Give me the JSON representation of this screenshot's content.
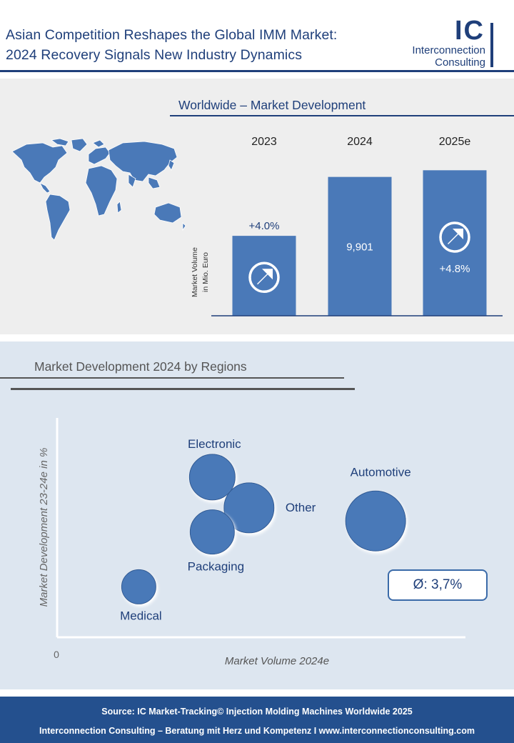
{
  "header": {
    "title_line1": "Asian Competition Reshapes the Global IMM Market:",
    "title_line2": "2024 Recovery Signals New Industry Dynamics",
    "logo_ic": "IC",
    "logo_line1": "Interconnection",
    "logo_line2": "Consulting"
  },
  "colors": {
    "navy": "#1f3f7a",
    "bar": "#4a79b8",
    "bubble": "#4a79b8",
    "panel_gray": "#eeeeee",
    "panel_blue": "#dde6f0",
    "footer": "#24508e"
  },
  "worldwide": {
    "section_title": "Worldwide – Market Development",
    "map_icon": "world-map-icon",
    "arrow_icon": "up-right-arrow-icon"
  },
  "chart_data": [
    {
      "type": "bar",
      "title": "Worldwide – Market Development",
      "ylabel": "Market Volume in Mio. Euro",
      "categories": [
        "2023",
        "2024",
        "2025e"
      ],
      "values": [
        5700,
        9901,
        10376
      ],
      "data_labels": [
        "+4.0%",
        "9,901",
        "+4.8%"
      ],
      "ylim": [
        0,
        10800
      ],
      "ylabel_line1": "Market Volume",
      "ylabel_line2": "in Mio. Euro"
    },
    {
      "type": "scatter",
      "title": "Market Development 2024 by Regions",
      "xlabel": "Market Volume 2024e",
      "ylabel": "Market Development 23-24e in %",
      "origin_label": "0",
      "average_label": "Ø: 3,7%",
      "points": [
        {
          "label": "Electronic",
          "x": 3.8,
          "y": 7.3,
          "size": 32
        },
        {
          "label": "Other",
          "x": 4.7,
          "y": 5.9,
          "size": 35
        },
        {
          "label": "Packaging",
          "x": 3.8,
          "y": 4.8,
          "size": 31
        },
        {
          "label": "Automotive",
          "x": 7.8,
          "y": 5.3,
          "size": 42
        },
        {
          "label": "Medical",
          "x": 2.0,
          "y": 2.3,
          "size": 24
        }
      ],
      "xlim": [
        0,
        10
      ],
      "ylim": [
        0,
        10
      ]
    }
  ],
  "footer": {
    "source": "Source: IC Market-Tracking© Injection Molding Machines Worldwide 2025",
    "tagline": "Interconnection Consulting – Beratung mit Herz und Kompetenz  I  www.interconnectionconsulting.com"
  }
}
